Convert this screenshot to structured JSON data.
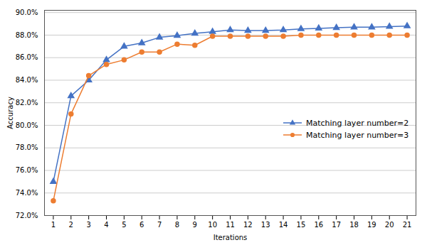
{
  "chart_data": {
    "type": "line",
    "xlabel": "Iterations",
    "ylabel": "Accuracy",
    "x": [
      1,
      2,
      3,
      4,
      5,
      6,
      7,
      8,
      9,
      10,
      11,
      12,
      13,
      14,
      15,
      16,
      17,
      18,
      19,
      20,
      21
    ],
    "series": [
      {
        "name": "Matching layer number=2",
        "color": "#4472C4",
        "marker": "triangle",
        "values": [
          0.75,
          0.826,
          0.84,
          0.858,
          0.87,
          0.873,
          0.878,
          0.8795,
          0.8815,
          0.883,
          0.8845,
          0.884,
          0.884,
          0.8845,
          0.8855,
          0.886,
          0.8865,
          0.887,
          0.887,
          0.8875,
          0.888
        ]
      },
      {
        "name": "Matching layer number=3",
        "color": "#ED7D31",
        "marker": "circle",
        "values": [
          0.733,
          0.81,
          0.844,
          0.854,
          0.858,
          0.865,
          0.865,
          0.872,
          0.871,
          0.879,
          0.879,
          0.879,
          0.879,
          0.879,
          0.88,
          0.88,
          0.88,
          0.88,
          0.88,
          0.88,
          0.88
        ]
      }
    ],
    "xlim": [
      0.5,
      21.5
    ],
    "xticks": [
      1,
      2,
      3,
      4,
      5,
      6,
      7,
      8,
      9,
      10,
      11,
      12,
      13,
      14,
      15,
      16,
      17,
      18,
      19,
      20,
      21
    ],
    "ylim": [
      0.72,
      0.902
    ],
    "yticks": [
      {
        "value": 0.72,
        "label": "72.0%"
      },
      {
        "value": 0.74,
        "label": "74.0%"
      },
      {
        "value": 0.76,
        "label": "76.0%"
      },
      {
        "value": 0.78,
        "label": "78.0%"
      },
      {
        "value": 0.8,
        "label": "80.0%"
      },
      {
        "value": 0.82,
        "label": "82.0%"
      },
      {
        "value": 0.84,
        "label": "84.0%"
      },
      {
        "value": 0.86,
        "label": "86.0%"
      },
      {
        "value": 0.88,
        "label": "88.0%"
      },
      {
        "value": 0.9,
        "label": "90.0%"
      }
    ],
    "grid": true,
    "legend": "right"
  }
}
